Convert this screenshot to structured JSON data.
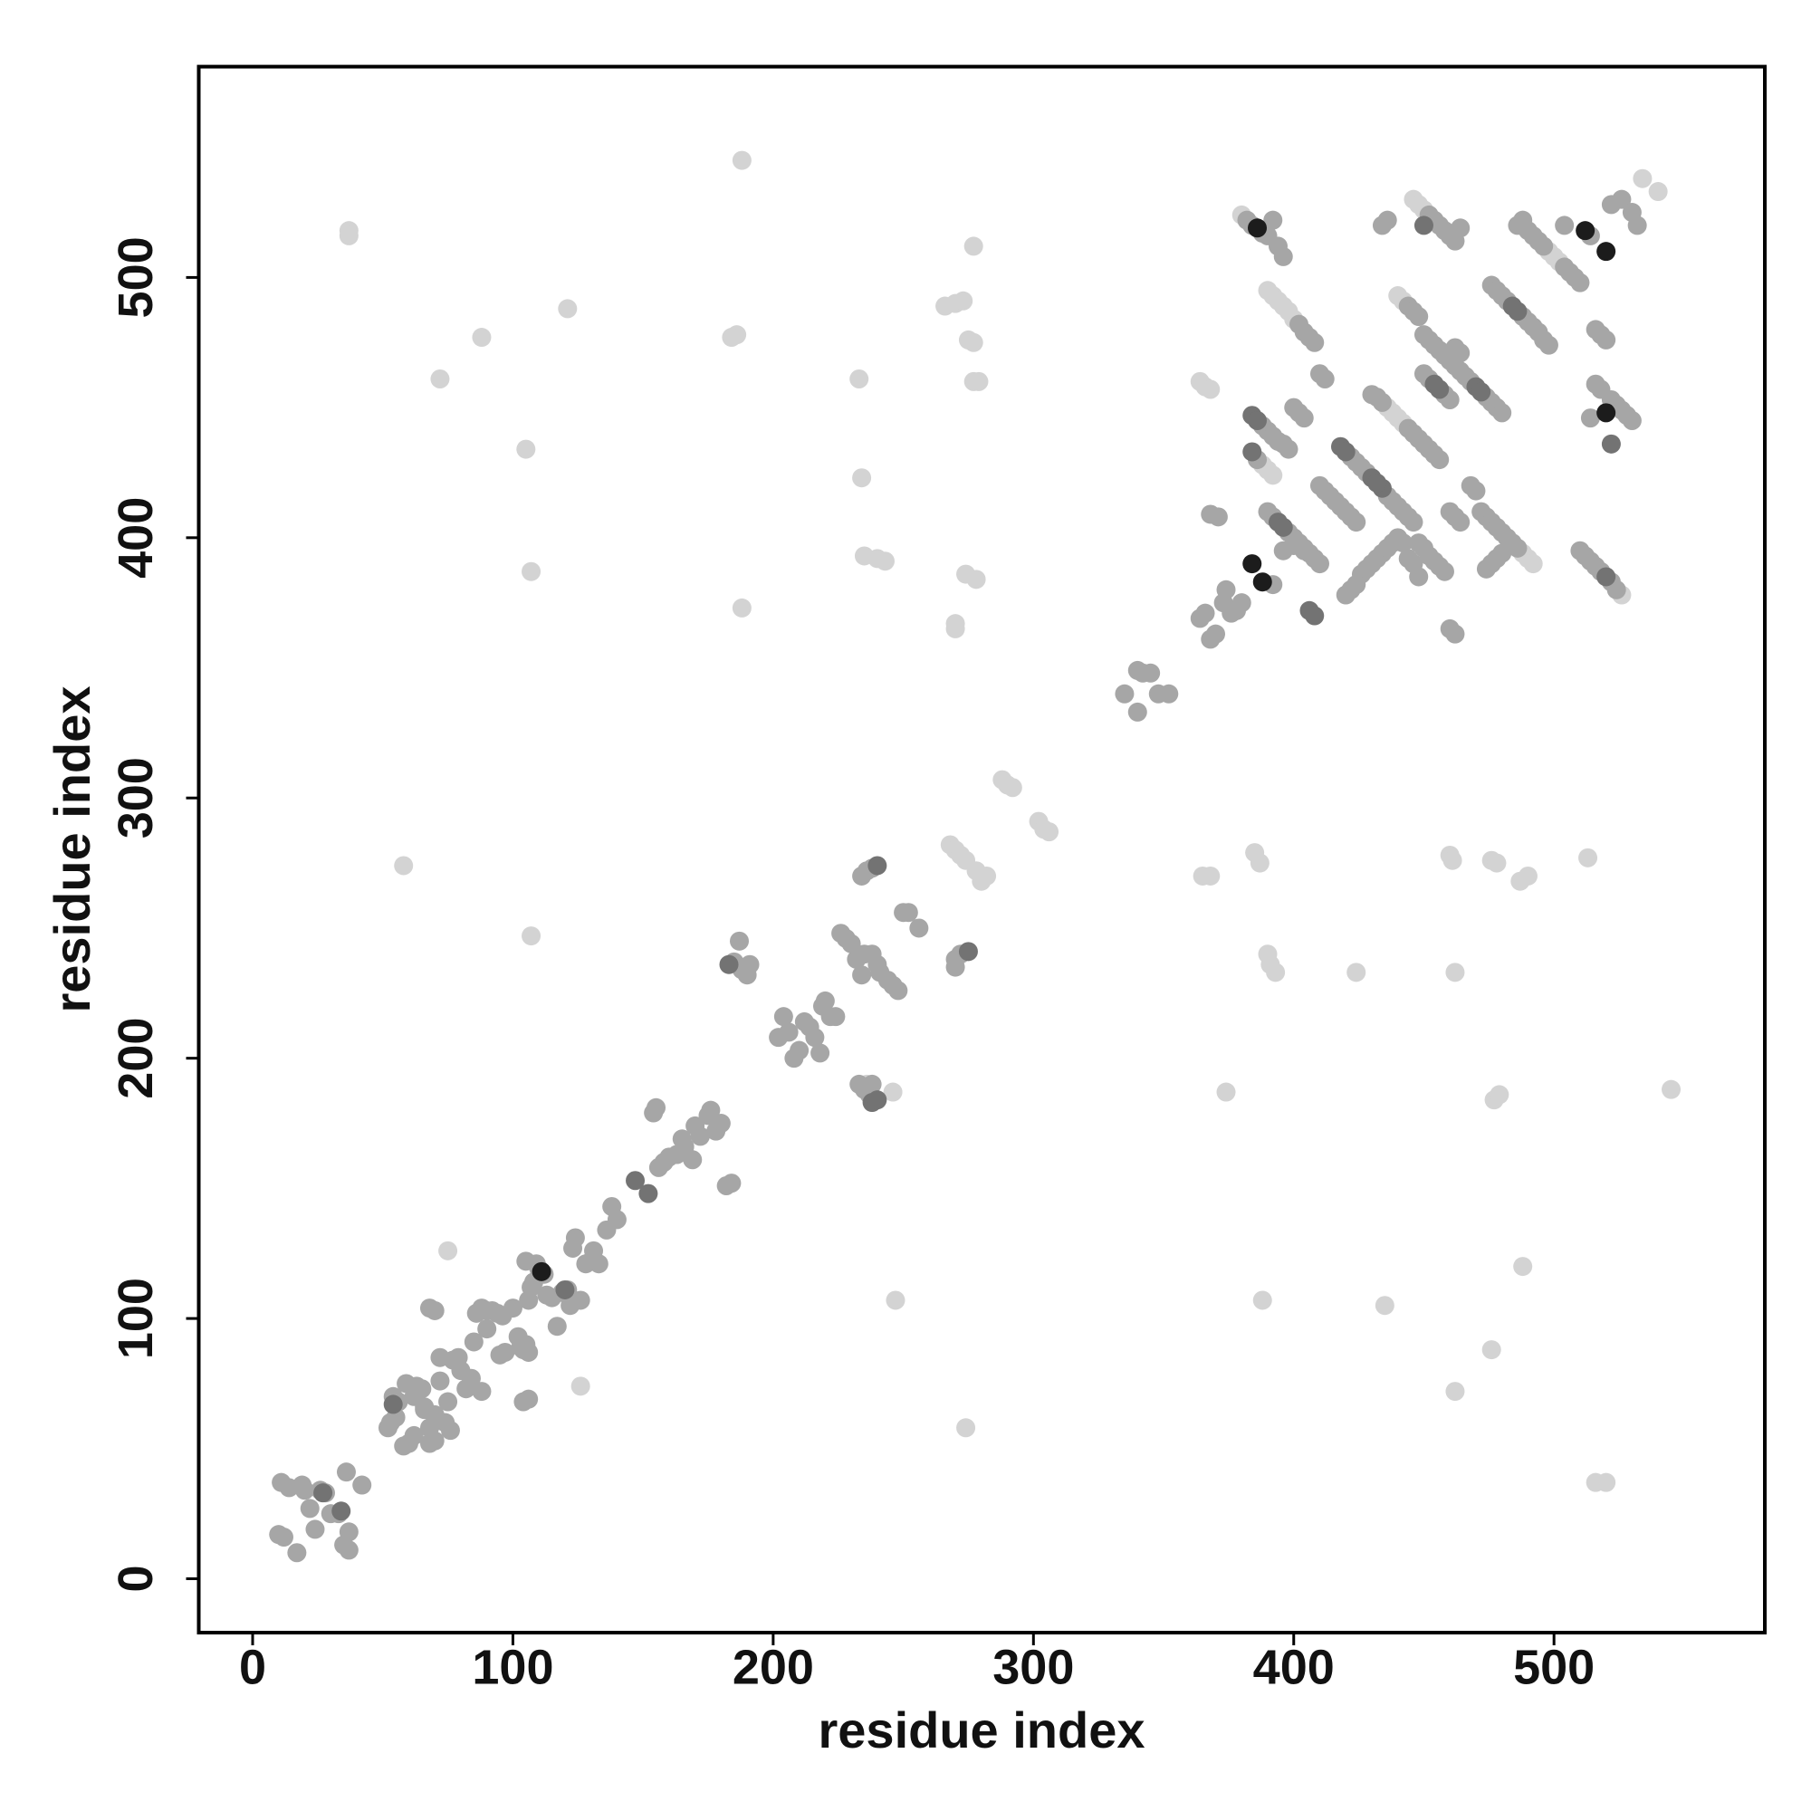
{
  "chart_data": {
    "type": "scatter",
    "x_label": "residue index",
    "y_label": "residue index",
    "xlim": [
      -20.7,
      581
    ],
    "ylim": [
      -20.7,
      581
    ],
    "xticks": [
      0,
      100,
      200,
      300,
      400,
      500
    ],
    "yticks": [
      0,
      100,
      200,
      300,
      400,
      500
    ],
    "grid": false,
    "series": [
      {
        "color": "#d3d3d3",
        "x": [
          188,
          37,
          37,
          121,
          88,
          186,
          184,
          72,
          105,
          107,
          188,
          233,
          234,
          235,
          240,
          243,
          277,
          266,
          270,
          273,
          275,
          277,
          277,
          279,
          274,
          278,
          270,
          270,
          58,
          107,
          247,
          274,
          365,
          368,
          374,
          385,
          387,
          388,
          390,
          391,
          393,
          424,
          435,
          460,
          461,
          462,
          462,
          476,
          478,
          477,
          479,
          476,
          487,
          490,
          488,
          513,
          516,
          520,
          545,
          246,
          236,
          75,
          126,
          288,
          290,
          292,
          302,
          304,
          306,
          364,
          366,
          368,
          380,
          390,
          392,
          394,
          396,
          398,
          400,
          440,
          442,
          446,
          448,
          450,
          488,
          490,
          492,
          498,
          500,
          502,
          526,
          534,
          540,
          436,
          438,
          440,
          442,
          388,
          390,
          392,
          268,
          270,
          272,
          274,
          278,
          280,
          282
        ],
        "y": [
          545,
          518,
          516,
          488,
          477,
          478,
          477,
          461,
          434,
          387,
          373,
          461,
          423,
          393,
          392,
          391,
          512,
          489,
          490,
          491,
          476,
          475,
          460,
          460,
          386,
          384,
          367,
          365,
          274,
          247,
          107,
          58,
          270,
          270,
          187,
          279,
          275,
          107,
          240,
          236,
          233,
          233,
          105,
          278,
          276,
          233,
          72,
          276,
          275,
          184,
          186,
          88,
          268,
          270,
          120,
          277,
          37,
          37,
          188,
          187,
          190,
          126,
          74,
          307,
          305,
          304,
          291,
          288,
          287,
          460,
          458,
          457,
          524,
          495,
          493,
          491,
          489,
          487,
          484,
          493,
          491,
          530,
          528,
          526,
          394,
          392,
          390,
          510,
          508,
          506,
          378,
          538,
          533,
          450,
          448,
          446,
          444,
          428,
          426,
          424,
          282,
          280,
          278,
          276,
          272,
          268,
          270
        ]
      },
      {
        "color": "#a6a6a6",
        "x": [
          10,
          12,
          11,
          14,
          17,
          19,
          20,
          22,
          24,
          26,
          28,
          30,
          33,
          35,
          37,
          36,
          37,
          42,
          52,
          53,
          55,
          54,
          56,
          58,
          60,
          62,
          59,
          63,
          65,
          66,
          68,
          68,
          70,
          70,
          72,
          72,
          74,
          76,
          75,
          77,
          79,
          80,
          82,
          84,
          85,
          86,
          88,
          90,
          92,
          94,
          96,
          95,
          97,
          100,
          102,
          103,
          104,
          105,
          106,
          105,
          106,
          107,
          108,
          109,
          110,
          112,
          113,
          115,
          117,
          119,
          121,
          122,
          123,
          124,
          126,
          128,
          130,
          131,
          133,
          136,
          138,
          140,
          104,
          106,
          68,
          70,
          88,
          90,
          62,
          66,
          154,
          155,
          156,
          158,
          160,
          163,
          165,
          166,
          169,
          170,
          172,
          175,
          176,
          178,
          180,
          182,
          184,
          185,
          187,
          188,
          190,
          191,
          202,
          204,
          206,
          208,
          210,
          212,
          214,
          216,
          218,
          219,
          220,
          222,
          224,
          226,
          228,
          230,
          232,
          234,
          235,
          238,
          240,
          241,
          244,
          246,
          248,
          250,
          252,
          256,
          234,
          236,
          238,
          233,
          235,
          237,
          238,
          270,
          272,
          270,
          335,
          340,
          342,
          345,
          348,
          352,
          340,
          364,
          366,
          368,
          370,
          373,
          374,
          376,
          378,
          380,
          368,
          371,
          382,
          384,
          388,
          390,
          392,
          394,
          396,
          402,
          404,
          406,
          408,
          410,
          412,
          388,
          390,
          392,
          394,
          396,
          398,
          400,
          402,
          404,
          386,
          390,
          392,
          398,
          400,
          402,
          404,
          406,
          408,
          410,
          392,
          396,
          400,
          404,
          410,
          412,
          414,
          416,
          418,
          420,
          422,
          424,
          422,
          424,
          426,
          428,
          436,
          438,
          440,
          442,
          444,
          446,
          420,
          422,
          424,
          426,
          428,
          430,
          432,
          434,
          436,
          438,
          440,
          442,
          444,
          446,
          448,
          430,
          432,
          434,
          444,
          446,
          448,
          450,
          452,
          454,
          456,
          444,
          446,
          448,
          450,
          452,
          454,
          456,
          458,
          460,
          462,
          464,
          466,
          468,
          474,
          476,
          478,
          480,
          450,
          452,
          458,
          460,
          462,
          464,
          434,
          436,
          452,
          454,
          456,
          458,
          460,
          462,
          464,
          468,
          470,
          472,
          474,
          476,
          478,
          480,
          482,
          484,
          486,
          476,
          478,
          480,
          482,
          488,
          490,
          492,
          494,
          496,
          498,
          486,
          488,
          490,
          492,
          494,
          496,
          504,
          506,
          508,
          510,
          504,
          514,
          516,
          518,
          520,
          510,
          512,
          514,
          516,
          518,
          522,
          524,
          516,
          518,
          522,
          524,
          526,
          528,
          530,
          514,
          522,
          526,
          530,
          532,
          448,
          450,
          452,
          454,
          456,
          458,
          460,
          462,
          464,
          460,
          462,
          474,
          476,
          478,
          480
        ],
        "y": [
          17,
          16,
          37,
          35,
          10,
          36,
          34,
          27,
          19,
          34,
          33,
          25,
          25,
          13,
          18,
          41,
          11,
          36,
          58,
          60,
          62,
          70,
          68,
          51,
          52,
          55,
          75,
          74,
          73,
          65,
          58,
          52,
          53,
          63,
          76,
          85,
          60,
          57,
          68,
          84,
          85,
          80,
          73,
          77,
          91,
          102,
          104,
          103,
          103,
          102,
          101,
          86,
          87,
          104,
          93,
          89,
          88,
          90,
          87,
          122,
          107,
          112,
          114,
          121,
          119,
          117,
          109,
          108,
          97,
          110,
          111,
          105,
          127,
          131,
          107,
          121,
          122,
          126,
          121,
          134,
          143,
          138,
          68,
          69,
          104,
          103,
          72,
          96,
          70,
          66,
          179,
          181,
          158,
          160,
          162,
          163,
          169,
          166,
          161,
          174,
          170,
          178,
          180,
          172,
          175,
          151,
          152,
          237,
          245,
          234,
          232,
          236,
          208,
          216,
          210,
          200,
          203,
          214,
          212,
          208,
          202,
          220,
          222,
          216,
          216,
          248,
          246,
          244,
          238,
          232,
          240,
          240,
          236,
          233,
          230,
          228,
          226,
          256,
          256,
          250,
          270,
          272,
          273,
          190,
          188,
          186,
          190,
          238,
          240,
          235,
          340,
          333,
          348,
          348,
          340,
          340,
          349,
          369,
          371,
          361,
          363,
          375,
          380,
          371,
          372,
          375,
          409,
          408,
          522,
          520,
          517,
          516,
          522,
          512,
          508,
          482,
          479,
          477,
          475,
          463,
          461,
          443,
          441,
          439,
          437,
          436,
          434,
          450,
          448,
          446,
          430,
          410,
          408,
          402,
          400,
          398,
          396,
          394,
          392,
          390,
          382,
          395,
          397,
          395,
          420,
          418,
          416,
          414,
          412,
          410,
          408,
          406,
          431,
          429,
          427,
          425,
          416,
          414,
          412,
          410,
          408,
          406,
          378,
          380,
          382,
          386,
          388,
          390,
          392,
          394,
          396,
          398,
          400,
          398,
          392,
          390,
          385,
          455,
          454,
          452,
          442,
          440,
          438,
          436,
          434,
          432,
          430,
          489,
          487,
          485,
          478,
          476,
          474,
          472,
          470,
          468,
          466,
          464,
          462,
          460,
          454,
          452,
          450,
          448,
          463,
          461,
          455,
          453,
          473,
          471,
          520,
          522,
          524,
          522,
          520,
          518,
          516,
          514,
          519,
          420,
          418,
          410,
          408,
          406,
          404,
          402,
          400,
          398,
          396,
          497,
          495,
          493,
          491,
          485,
          483,
          481,
          479,
          476,
          474,
          520,
          522,
          518,
          516,
          514,
          512,
          504,
          502,
          500,
          498,
          520,
          516,
          480,
          478,
          476,
          395,
          393,
          391,
          389,
          387,
          383,
          380,
          459,
          457,
          453,
          451,
          449,
          447,
          445,
          446,
          528,
          530,
          525,
          520,
          398,
          396,
          393,
          391,
          389,
          387,
          410,
          408,
          406,
          365,
          363,
          388,
          390,
          392,
          394
        ]
      },
      {
        "color": "#737373",
        "x": [
          240,
          275,
          183,
          54,
          27,
          34,
          120,
          434,
          450,
          384,
          520,
          522,
          147,
          152,
          238,
          240,
          384,
          386,
          394,
          396,
          430,
          432,
          454,
          456,
          418,
          420,
          406,
          408,
          470,
          472,
          484,
          486
        ],
        "y": [
          274,
          241,
          236,
          67,
          33,
          26,
          111,
          419,
          520,
          433,
          385,
          436,
          153,
          148,
          183,
          184,
          447,
          445,
          406,
          404,
          423,
          421,
          459,
          457,
          435,
          433,
          372,
          370,
          458,
          456,
          489,
          487
        ]
      },
      {
        "color": "#1c1c1c",
        "x": [
          386,
          512,
          520,
          520,
          111,
          384,
          388
        ],
        "y": [
          519,
          518,
          510,
          448,
          118,
          390,
          383
        ]
      }
    ]
  }
}
